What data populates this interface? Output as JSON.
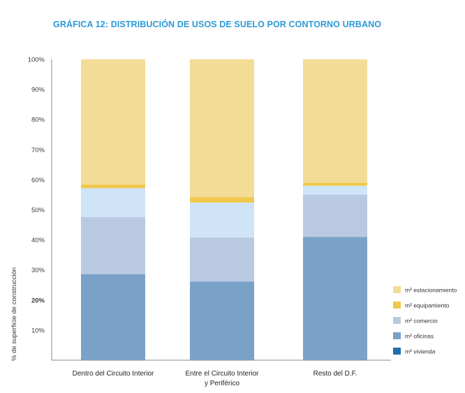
{
  "chart_data": {
    "type": "bar",
    "stacked": true,
    "title": "GRÁFICA 12:  DISTRIBUCIÓN DE USOS DE SUELO POR CONTORNO URBANO",
    "ylabel": "% de superficie de construcción",
    "xlabel": "",
    "ylim": [
      0,
      100
    ],
    "y_ticks": [
      "10%",
      "20%",
      "30%",
      "40%",
      "50%",
      "60%",
      "70%",
      "80%",
      "90%",
      "100%"
    ],
    "categories": [
      [
        "Dentro del Circuito Interior"
      ],
      [
        "Entre el Circuito Interior",
        "y Periférico"
      ],
      [
        "Resto del D.F."
      ]
    ],
    "series": [
      {
        "name": "m² vivienda",
        "color": "#1f6fae",
        "values": [
          0,
          0,
          0
        ]
      },
      {
        "name": "m² oficinas",
        "color": "#7aa1c7",
        "values": [
          28.6,
          26.1,
          41.0
        ]
      },
      {
        "name": "m² comercio",
        "color": "#b9c9e1",
        "values": [
          19.0,
          14.7,
          14.0
        ]
      },
      {
        "name": "m² equipamiento",
        "color": "#cfe4f6",
        "values": [
          9.6,
          11.6,
          3.0
        ]
      },
      {
        "name": "m² equipamiento",
        "color": "#f0c84b",
        "values": [
          1.2,
          1.8,
          1.0
        ]
      },
      {
        "name": "m² estacionamiento",
        "color": "#f3dc96",
        "values": [
          41.6,
          45.8,
          41.0
        ]
      }
    ],
    "legend": {
      "placement": "right",
      "items": [
        {
          "label": "m² estacionamiento",
          "color": "#f3dc96"
        },
        {
          "label": "m² equipamiento",
          "color": "#f0c84b"
        },
        {
          "label": "m² comercio",
          "color": "#b9c9e1"
        },
        {
          "label": "m² oficinas",
          "color": "#7aa1c7"
        },
        {
          "label": "m² vivienda",
          "color": "#1f6fae"
        }
      ]
    },
    "grid": false
  }
}
